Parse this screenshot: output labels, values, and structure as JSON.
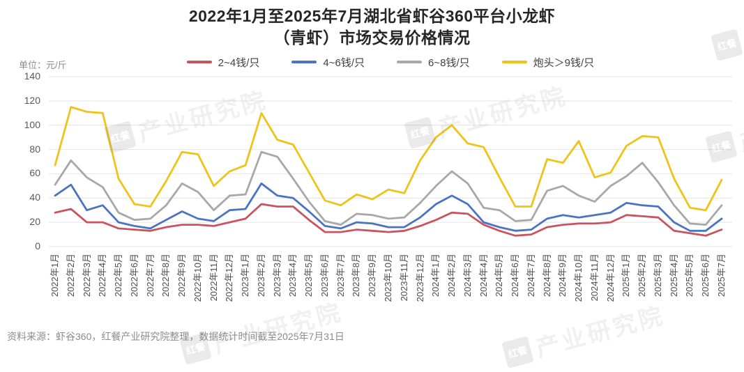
{
  "title": {
    "line1": "2022年1月至2025年7月湖北省虾谷360平台小龙虾",
    "line2": "（青虾）市场交易价格情况"
  },
  "unit_label": "单位：元/斤",
  "footer": "资料来源：虾谷360，红餐产业研究院整理，数据统计时间截至2025年7月31日",
  "watermark": {
    "logo_text": "红餐",
    "text": "产业研究院"
  },
  "axis": {
    "yticks": [
      0,
      20,
      40,
      60,
      80,
      100,
      120,
      140
    ]
  },
  "chart_data": {
    "type": "line",
    "title": "2022年1月至2025年7月湖北省虾谷360平台小龙虾（青虾）市场交易价格情况",
    "ylabel": "元/斤",
    "ylim": [
      0,
      140
    ],
    "ytick_step": 20,
    "grid": true,
    "legend_position": "top",
    "categories": [
      "2022年1月",
      "2022年2月",
      "2022年3月",
      "2022年4月",
      "2022年5月",
      "2022年6月",
      "2022年7月",
      "2022年8月",
      "2022年9月",
      "2022年10月",
      "2022年11月",
      "2022年12月",
      "2023年1月",
      "2023年2月",
      "2023年3月",
      "2023年4月",
      "2023年5月",
      "2023年6月",
      "2023年7月",
      "2023年8月",
      "2023年9月",
      "2023年10月",
      "2023年11月",
      "2023年12月",
      "2024年1月",
      "2024年2月",
      "2024年3月",
      "2024年4月",
      "2024年5月",
      "2024年6月",
      "2024年7月",
      "2024年8月",
      "2024年9月",
      "2024年10月",
      "2024年11月",
      "2024年12月",
      "2025年1月",
      "2025年2月",
      "2025年3月",
      "2025年4月",
      "2025年5月",
      "2025年6月",
      "2025年7月"
    ],
    "series": [
      {
        "name": "2~4钱/只",
        "color": "#c9535f",
        "values": [
          28,
          31,
          20,
          20,
          15,
          14,
          13,
          16,
          18,
          18,
          17,
          20,
          23,
          35,
          33,
          33,
          22,
          12,
          12,
          14,
          13,
          12,
          13,
          17,
          22,
          28,
          27,
          18,
          13,
          9,
          10,
          16,
          18,
          19,
          19,
          20,
          26,
          25,
          24,
          13,
          11,
          9,
          14
        ]
      },
      {
        "name": "4~6钱/只",
        "color": "#4a73c2",
        "values": [
          42,
          51,
          30,
          34,
          20,
          17,
          15,
          22,
          29,
          23,
          21,
          30,
          31,
          52,
          42,
          40,
          29,
          17,
          15,
          20,
          19,
          16,
          16,
          24,
          35,
          42,
          35,
          20,
          16,
          13,
          14,
          23,
          26,
          24,
          26,
          28,
          36,
          34,
          33,
          20,
          13,
          13,
          23
        ]
      },
      {
        "name": "6~8钱/只",
        "color": "#a8a8a8",
        "values": [
          51,
          71,
          57,
          49,
          28,
          22,
          23,
          34,
          52,
          45,
          30,
          42,
          43,
          78,
          74,
          56,
          37,
          21,
          18,
          27,
          26,
          23,
          24,
          36,
          50,
          62,
          52,
          32,
          30,
          21,
          22,
          46,
          50,
          42,
          37,
          50,
          58,
          69,
          53,
          34,
          19,
          18,
          34
        ]
      },
      {
        "name": "炮头＞9钱/只",
        "color": "#efc318",
        "values": [
          67,
          115,
          111,
          110,
          56,
          35,
          33,
          54,
          78,
          76,
          50,
          62,
          67,
          110,
          88,
          84,
          61,
          38,
          34,
          43,
          39,
          47,
          44,
          71,
          90,
          100,
          85,
          82,
          57,
          33,
          33,
          72,
          69,
          87,
          57,
          61,
          83,
          91,
          90,
          56,
          32,
          30,
          55
        ]
      }
    ]
  }
}
